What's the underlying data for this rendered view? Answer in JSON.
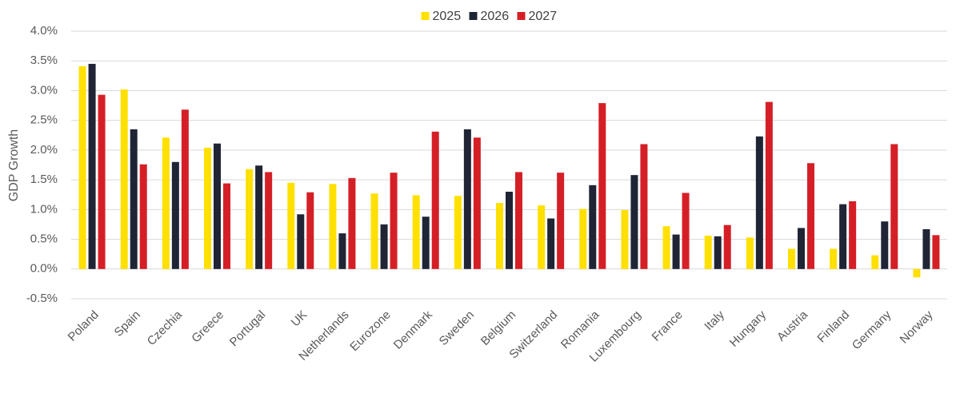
{
  "chart_data": {
    "type": "bar",
    "y_label": "GDP Growth",
    "categories": [
      "Poland",
      "Spain",
      "Czechia",
      "Greece",
      "Portugal",
      "UK",
      "Netherlands",
      "Eurozone",
      "Denmark",
      "Sweden",
      "Belgium",
      "Switzerland",
      "Romania",
      "Luxembourg",
      "France",
      "Italy",
      "Hungary",
      "Austria",
      "Finland",
      "Germany",
      "Norway"
    ],
    "series": [
      {
        "name": "2025",
        "color": "#ffe000",
        "values": [
          3.41,
          3.02,
          2.21,
          2.04,
          1.68,
          1.45,
          1.43,
          1.27,
          1.24,
          1.23,
          1.11,
          1.07,
          1.01,
          0.99,
          0.72,
          0.56,
          0.53,
          0.34,
          0.34,
          0.23,
          -0.14
        ]
      },
      {
        "name": "2026",
        "color": "#1f2535",
        "values": [
          3.45,
          2.35,
          1.8,
          2.11,
          1.74,
          0.92,
          0.6,
          0.75,
          0.88,
          2.35,
          1.3,
          0.85,
          1.41,
          1.58,
          0.58,
          0.55,
          2.23,
          0.69,
          1.09,
          0.8,
          0.67
        ]
      },
      {
        "name": "2027",
        "color": "#d51f26",
        "values": [
          2.93,
          1.76,
          2.68,
          1.44,
          1.63,
          1.29,
          1.53,
          1.62,
          2.31,
          2.21,
          1.63,
          1.62,
          2.79,
          2.1,
          1.28,
          0.74,
          2.81,
          1.78,
          1.14,
          2.1,
          0.57
        ]
      }
    ],
    "ylim": [
      -0.5,
      4.0
    ],
    "yticks": [
      {
        "value": -0.5,
        "label": "-0.5%"
      },
      {
        "value": 0.0,
        "label": "0.0%"
      },
      {
        "value": 0.5,
        "label": "0.5%"
      },
      {
        "value": 1.0,
        "label": "1.0%"
      },
      {
        "value": 1.5,
        "label": "1.5%"
      },
      {
        "value": 2.0,
        "label": "2.0%"
      },
      {
        "value": 2.5,
        "label": "2.5%"
      },
      {
        "value": 3.0,
        "label": "3.0%"
      },
      {
        "value": 3.5,
        "label": "3.5%"
      },
      {
        "value": 4.0,
        "label": "4.0%"
      }
    ],
    "grid": true,
    "legend_position": "top"
  }
}
